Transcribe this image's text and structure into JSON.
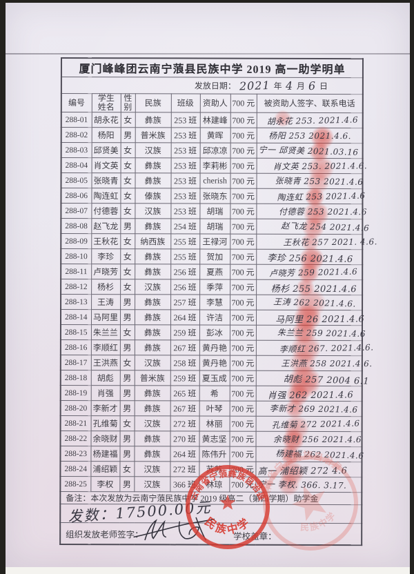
{
  "doc": {
    "title": "厦门峰峰团云南宁蒗县民族中学 2019 高一助学明单",
    "date": {
      "label": "发放日期：",
      "year": "2021",
      "unit_year": "年",
      "month": "4",
      "unit_month": "月",
      "day": "6",
      "unit_day": "日"
    }
  },
  "table": {
    "headers": [
      "编号",
      "学生\n姓名",
      "性\n别",
      "民族",
      "班级",
      "资助人",
      "700 元",
      "被资助人签字、联系电话"
    ],
    "rows": [
      {
        "id": "288-01",
        "name": "胡永花",
        "gender": "女",
        "ethnic": "彝族",
        "class": "253 班",
        "sponsor": "林建峰",
        "amount": "700 元",
        "sign": "胡永花 253. 2021.4.6"
      },
      {
        "id": "288-02",
        "name": "杨阳",
        "gender": "男",
        "ethnic": "普米族",
        "class": "253 班",
        "sponsor": "黄晖",
        "amount": "700 元",
        "sign": "杨阳 253 2021.4.6."
      },
      {
        "id": "288-03",
        "name": "邱贤美",
        "gender": "女",
        "ethnic": "汉族",
        "class": "253 班",
        "sponsor": "邱凉凉",
        "amount": "700 元",
        "sign": "宁一 邱贤美 2021.03.16"
      },
      {
        "id": "288-04",
        "name": "肖文英",
        "gender": "女",
        "ethnic": "彝族",
        "class": "253 班",
        "sponsor": "李莉彬",
        "amount": "700 元",
        "sign": "肖文英 253. 2021.4.6."
      },
      {
        "id": "288-05",
        "name": "张晓青",
        "gender": "女",
        "ethnic": "彝族",
        "class": "253 班",
        "sponsor": "cherish",
        "amount": "700 元",
        "sign": "张晓青 253 2021.4.6"
      },
      {
        "id": "288-06",
        "name": "陶连虹",
        "gender": "女",
        "ethnic": "傣族",
        "class": "253 班",
        "sponsor": "张晓东",
        "amount": "700 元",
        "sign": "陶连虹 253 2021.4.6"
      },
      {
        "id": "288-07",
        "name": "付德蓉",
        "gender": "女",
        "ethnic": "汉族",
        "class": "253 班",
        "sponsor": "胡瑞",
        "amount": "700 元",
        "sign": "付德蓉 253 2021.4.6"
      },
      {
        "id": "288-08",
        "name": "赵飞龙",
        "gender": "男",
        "ethnic": "彝族",
        "class": "254 班",
        "sponsor": "胡瑞",
        "amount": "700 元",
        "sign": "赵飞龙 254 2021.4.6"
      },
      {
        "id": "288-09",
        "name": "王秋花",
        "gender": "女",
        "ethnic": "纳西族",
        "class": "255 班",
        "sponsor": "王禄河",
        "amount": "700 元",
        "sign": "王秋花 257 2021. 4.6."
      },
      {
        "id": "288-10",
        "name": "李珍",
        "gender": "女",
        "ethnic": "彝族",
        "class": "255 班",
        "sponsor": "贺加",
        "amount": "700 元",
        "sign": "李珍 256 2021.4.6"
      },
      {
        "id": "288-11",
        "name": "卢晓芳",
        "gender": "女",
        "ethnic": "彝族",
        "class": "256 班",
        "sponsor": "夏燕",
        "amount": "700 元",
        "sign": "卢晓芳 259 2021.4.6"
      },
      {
        "id": "288-12",
        "name": "杨杉",
        "gender": "女",
        "ethnic": "汉族",
        "class": "256 班",
        "sponsor": "季萍",
        "amount": "700 元",
        "sign": "杨杉 255 2021.4.6"
      },
      {
        "id": "288-13",
        "name": "王涛",
        "gender": "男",
        "ethnic": "彝族",
        "class": "257 班",
        "sponsor": "李慧",
        "amount": "700 元",
        "sign": "王涛 262 2021.4.6."
      },
      {
        "id": "288-14",
        "name": "马阿里",
        "gender": "男",
        "ethnic": "彝族",
        "class": "264 班",
        "sponsor": "许洁",
        "amount": "700 元",
        "sign": "马阿里 26 2021.4.6"
      },
      {
        "id": "288-15",
        "name": "朱兰兰",
        "gender": "女",
        "ethnic": "彝族",
        "class": "259 班",
        "sponsor": "彭冰",
        "amount": "700 元",
        "sign": "朱兰兰 259 2021.4.6"
      },
      {
        "id": "288-16",
        "name": "李顺红",
        "gender": "男",
        "ethnic": "彝族",
        "class": "267 班",
        "sponsor": "黄丹艳",
        "amount": "700 元",
        "sign": "李顺红 267. 2021.4.6."
      },
      {
        "id": "288-17",
        "name": "王洪燕",
        "gender": "女",
        "ethnic": "汉族",
        "class": "258 班",
        "sponsor": "黄丹艳",
        "amount": "700 元",
        "sign": "王洪燕 258 2021.4.6."
      },
      {
        "id": "288-18",
        "name": "胡彪",
        "gender": "男",
        "ethnic": "普米族",
        "class": "259 班",
        "sponsor": "夏玉成",
        "amount": "700 元",
        "sign": "胡彪 257 2004 6.1"
      },
      {
        "id": "288-19",
        "name": "肖强",
        "gender": "男",
        "ethnic": "彝族",
        "class": "265 班",
        "sponsor": "希",
        "amount": "700 元",
        "sign": "肖强 262 2021.4.6"
      },
      {
        "id": "288-20",
        "name": "李新才",
        "gender": "男",
        "ethnic": "彝族",
        "class": "267 班",
        "sponsor": "叶琴",
        "amount": "700 元",
        "sign": "李新才 269 2021.4.6"
      },
      {
        "id": "288-21",
        "name": "孔维菊",
        "gender": "女",
        "ethnic": "汉族",
        "class": "272 班",
        "sponsor": "林丽",
        "amount": "700 元",
        "sign": "孔维菊 272 2021.4.6"
      },
      {
        "id": "288-22",
        "name": "余晓财",
        "gender": "男",
        "ethnic": "彝族",
        "class": "270 班",
        "sponsor": "黄志坚",
        "amount": "700 元",
        "sign": "余晓财 256 2021.4.6"
      },
      {
        "id": "288-23",
        "name": "杨建福",
        "gender": "男",
        "ethnic": "彝族",
        "class": "264 班",
        "sponsor": "陈伟升",
        "amount": "700 元",
        "sign": "杨建福 262 2021.4.6"
      },
      {
        "id": "288-24",
        "name": "浦绍颖",
        "gender": "女",
        "ethnic": "汉族",
        "class": "272 班",
        "sponsor": "苏苏",
        "amount": "700 元",
        "sign": "高一 浦绍颖 272 4.6"
      },
      {
        "id": "288-25",
        "name": "李权",
        "gender": "男",
        "ethnic": "汉族",
        "class": "366 班",
        "sponsor": "林琼",
        "amount": "700 元",
        "sign": "宁一 李权. 366. 3.17."
      }
    ]
  },
  "footer": {
    "remark": "备注：本次发放为云南宁蒗民族中学 2019 级高二（第四学期）助学金",
    "amount_note": "发数：17500.00元",
    "teacher_sign_label": "组织发放老师签字：",
    "school_seal_label": "学校盖章："
  },
  "stamp": {
    "arc_text": "云南省宁蒗彝族自治县",
    "name_text": "民族中学"
  },
  "colors": {
    "stamp_red": "#d6392f",
    "fingerprint_red": "#d53a30",
    "paper": "#eae6ee",
    "ink": "#3f3e45"
  }
}
